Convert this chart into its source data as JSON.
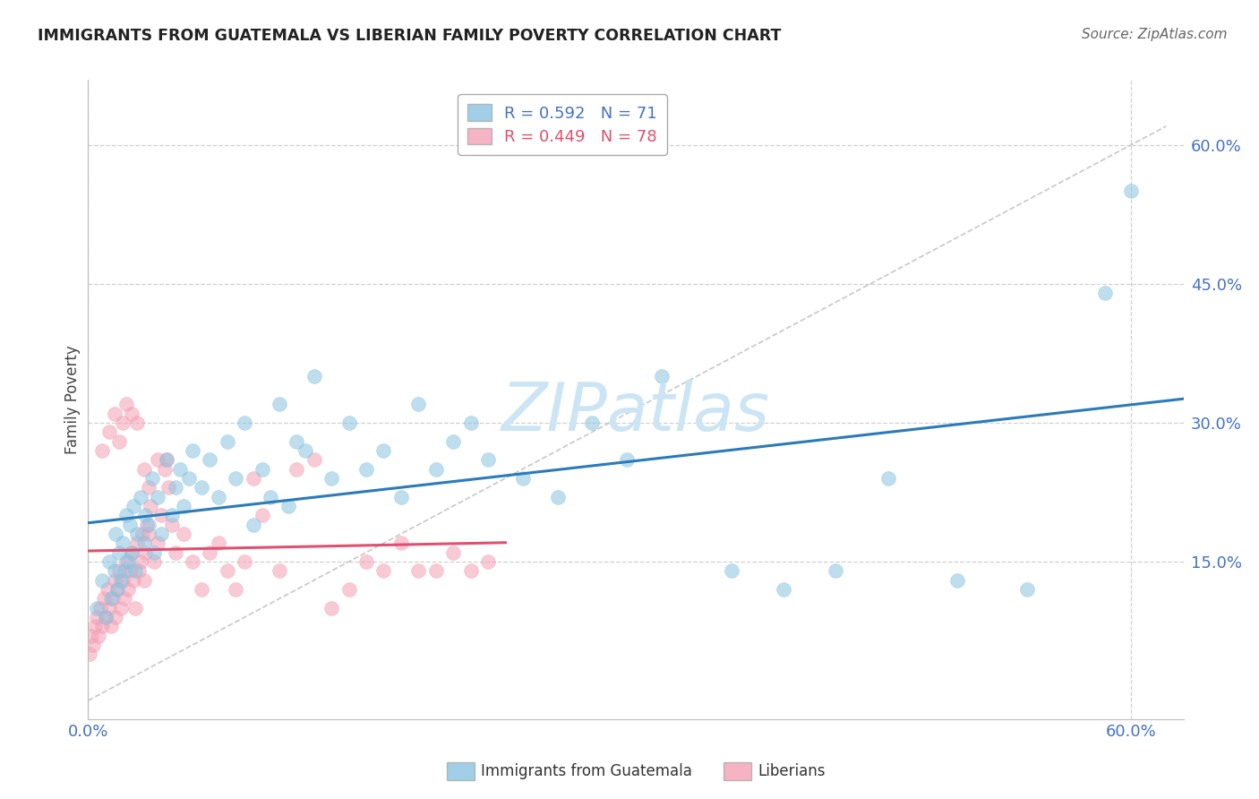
{
  "title": "IMMIGRANTS FROM GUATEMALA VS LIBERIAN FAMILY POVERTY CORRELATION CHART",
  "source": "Source: ZipAtlas.com",
  "ylabel": "Family Poverty",
  "ytick_labels": [
    "15.0%",
    "30.0%",
    "45.0%",
    "60.0%"
  ],
  "ytick_values": [
    0.15,
    0.3,
    0.45,
    0.6
  ],
  "xtick_labels": [
    "0.0%",
    "60.0%"
  ],
  "xtick_values": [
    0.0,
    0.6
  ],
  "xlim": [
    0.0,
    0.63
  ],
  "ylim": [
    -0.02,
    0.67
  ],
  "legend_line1": "R = 0.592   N = 71",
  "legend_line2": "R = 0.449   N = 78",
  "watermark": "ZIPatlas",
  "blue_scatter_x": [
    0.005,
    0.008,
    0.01,
    0.012,
    0.013,
    0.015,
    0.016,
    0.017,
    0.018,
    0.019,
    0.02,
    0.021,
    0.022,
    0.023,
    0.024,
    0.025,
    0.026,
    0.027,
    0.028,
    0.03,
    0.032,
    0.033,
    0.035,
    0.037,
    0.038,
    0.04,
    0.042,
    0.045,
    0.048,
    0.05,
    0.053,
    0.055,
    0.058,
    0.06,
    0.065,
    0.07,
    0.075,
    0.08,
    0.085,
    0.09,
    0.095,
    0.1,
    0.105,
    0.11,
    0.115,
    0.12,
    0.125,
    0.13,
    0.14,
    0.15,
    0.16,
    0.17,
    0.18,
    0.19,
    0.2,
    0.21,
    0.22,
    0.23,
    0.25,
    0.27,
    0.29,
    0.31,
    0.33,
    0.37,
    0.4,
    0.43,
    0.46,
    0.5,
    0.54,
    0.585,
    0.6
  ],
  "blue_scatter_y": [
    0.1,
    0.13,
    0.09,
    0.15,
    0.11,
    0.14,
    0.18,
    0.12,
    0.16,
    0.13,
    0.17,
    0.14,
    0.2,
    0.15,
    0.19,
    0.16,
    0.21,
    0.14,
    0.18,
    0.22,
    0.17,
    0.2,
    0.19,
    0.24,
    0.16,
    0.22,
    0.18,
    0.26,
    0.2,
    0.23,
    0.25,
    0.21,
    0.24,
    0.27,
    0.23,
    0.26,
    0.22,
    0.28,
    0.24,
    0.3,
    0.19,
    0.25,
    0.22,
    0.32,
    0.21,
    0.28,
    0.27,
    0.35,
    0.24,
    0.3,
    0.25,
    0.27,
    0.22,
    0.32,
    0.25,
    0.28,
    0.3,
    0.26,
    0.24,
    0.22,
    0.3,
    0.26,
    0.35,
    0.14,
    0.12,
    0.14,
    0.24,
    0.13,
    0.12,
    0.44,
    0.55
  ],
  "pink_scatter_x": [
    0.001,
    0.002,
    0.003,
    0.004,
    0.005,
    0.006,
    0.007,
    0.008,
    0.009,
    0.01,
    0.011,
    0.012,
    0.013,
    0.014,
    0.015,
    0.016,
    0.017,
    0.018,
    0.019,
    0.02,
    0.021,
    0.022,
    0.023,
    0.024,
    0.025,
    0.026,
    0.027,
    0.028,
    0.029,
    0.03,
    0.031,
    0.032,
    0.033,
    0.034,
    0.035,
    0.036,
    0.038,
    0.04,
    0.042,
    0.044,
    0.046,
    0.048,
    0.05,
    0.055,
    0.06,
    0.065,
    0.07,
    0.075,
    0.08,
    0.085,
    0.09,
    0.095,
    0.1,
    0.11,
    0.12,
    0.13,
    0.14,
    0.15,
    0.16,
    0.17,
    0.18,
    0.19,
    0.2,
    0.21,
    0.22,
    0.23,
    0.008,
    0.012,
    0.015,
    0.018,
    0.02,
    0.022,
    0.025,
    0.028,
    0.032,
    0.035,
    0.04,
    0.045
  ],
  "pink_scatter_y": [
    0.05,
    0.07,
    0.06,
    0.08,
    0.09,
    0.07,
    0.1,
    0.08,
    0.11,
    0.09,
    0.12,
    0.1,
    0.08,
    0.11,
    0.13,
    0.09,
    0.12,
    0.14,
    0.1,
    0.13,
    0.11,
    0.15,
    0.12,
    0.14,
    0.16,
    0.13,
    0.1,
    0.17,
    0.14,
    0.15,
    0.18,
    0.13,
    0.16,
    0.19,
    0.18,
    0.21,
    0.15,
    0.17,
    0.2,
    0.25,
    0.23,
    0.19,
    0.16,
    0.18,
    0.15,
    0.12,
    0.16,
    0.17,
    0.14,
    0.12,
    0.15,
    0.24,
    0.2,
    0.14,
    0.25,
    0.26,
    0.1,
    0.12,
    0.15,
    0.14,
    0.17,
    0.14,
    0.14,
    0.16,
    0.14,
    0.15,
    0.27,
    0.29,
    0.31,
    0.28,
    0.3,
    0.32,
    0.31,
    0.3,
    0.25,
    0.23,
    0.26,
    0.26
  ],
  "blue_color": "#89c4e1",
  "pink_color": "#f4a0b5",
  "blue_line_color": "#2b7bba",
  "pink_line_color": "#e05070",
  "diagonal_color": "#c8c8c8",
  "grid_color": "#d0d0d0",
  "title_color": "#222222",
  "axis_color": "#4472c4",
  "source_color": "#666666",
  "watermark_color": "#cce5f5"
}
